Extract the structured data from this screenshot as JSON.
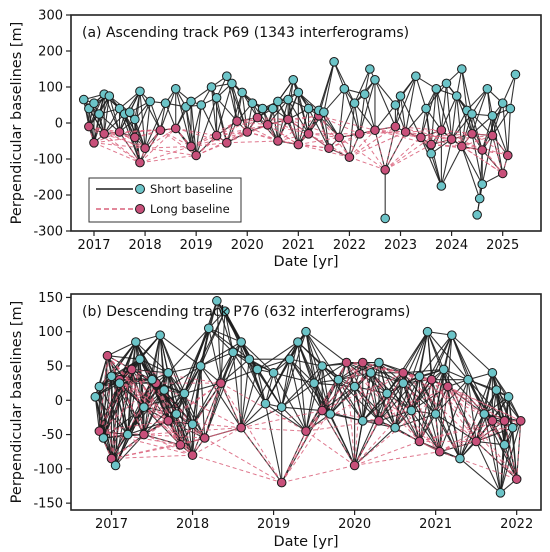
{
  "colors": {
    "short_edge": "#1e1e1e",
    "long_edge": "#d9607a",
    "short_point": "#6cc4c8",
    "long_point": "#c8507a",
    "point_stroke": "#1a1a1a"
  },
  "legend": {
    "short_label": "Short baseline",
    "long_label": "Long baseline",
    "placement": "lower-left of top panel"
  },
  "chart_data": [
    {
      "type": "scatter",
      "title": "(a) Ascending track P69 (1343 interferograms)",
      "xlabel": "Date [yr]",
      "ylabel": "Perpendicular baselines [m]",
      "xlim": [
        2016.55,
        2025.75
      ],
      "ylim": [
        -300,
        300
      ],
      "xticks": [
        2017,
        2018,
        2019,
        2020,
        2021,
        2022,
        2023,
        2024,
        2025
      ],
      "yticks": [
        -300,
        -200,
        -100,
        0,
        100,
        200,
        300
      ],
      "short_points": [
        [
          2016.8,
          65
        ],
        [
          2016.9,
          40
        ],
        [
          2017.0,
          55
        ],
        [
          2017.1,
          25
        ],
        [
          2017.2,
          80
        ],
        [
          2017.3,
          75
        ],
        [
          2017.5,
          40
        ],
        [
          2017.6,
          25
        ],
        [
          2017.7,
          30
        ],
        [
          2017.8,
          10
        ],
        [
          2017.9,
          88
        ],
        [
          2018.1,
          60
        ],
        [
          2018.4,
          55
        ],
        [
          2018.6,
          95
        ],
        [
          2018.8,
          45
        ],
        [
          2018.9,
          60
        ],
        [
          2019.1,
          50
        ],
        [
          2019.3,
          100
        ],
        [
          2019.4,
          70
        ],
        [
          2019.6,
          130
        ],
        [
          2019.7,
          110
        ],
        [
          2019.9,
          85
        ],
        [
          2020.1,
          55
        ],
        [
          2020.3,
          40
        ],
        [
          2020.5,
          40
        ],
        [
          2020.6,
          60
        ],
        [
          2020.8,
          65
        ],
        [
          2020.9,
          120
        ],
        [
          2021.0,
          85
        ],
        [
          2021.2,
          40
        ],
        [
          2021.4,
          35
        ],
        [
          2021.5,
          30
        ],
        [
          2021.7,
          170
        ],
        [
          2021.9,
          95
        ],
        [
          2022.1,
          55
        ],
        [
          2022.3,
          80
        ],
        [
          2022.4,
          150
        ],
        [
          2022.5,
          120
        ],
        [
          2022.7,
          -265
        ],
        [
          2022.9,
          50
        ],
        [
          2023.0,
          75
        ],
        [
          2023.3,
          130
        ],
        [
          2023.5,
          40
        ],
        [
          2023.7,
          95
        ],
        [
          2023.9,
          110
        ],
        [
          2024.1,
          75
        ],
        [
          2024.2,
          150
        ],
        [
          2024.3,
          35
        ],
        [
          2024.4,
          25
        ],
        [
          2024.5,
          -255
        ],
        [
          2024.6,
          -170
        ],
        [
          2024.7,
          95
        ],
        [
          2024.8,
          20
        ],
        [
          2025.0,
          55
        ],
        [
          2025.15,
          40
        ],
        [
          2025.25,
          135
        ],
        [
          2024.55,
          -210
        ],
        [
          2023.6,
          -85
        ],
        [
          2023.8,
          -175
        ]
      ],
      "long_points": [
        [
          2016.9,
          -10
        ],
        [
          2017.0,
          -55
        ],
        [
          2017.2,
          -30
        ],
        [
          2017.5,
          -25
        ],
        [
          2017.8,
          -40
        ],
        [
          2017.9,
          -110
        ],
        [
          2018.0,
          -70
        ],
        [
          2018.3,
          -20
        ],
        [
          2018.6,
          -15
        ],
        [
          2018.9,
          -65
        ],
        [
          2019.0,
          -90
        ],
        [
          2019.4,
          -35
        ],
        [
          2019.6,
          -55
        ],
        [
          2019.8,
          5
        ],
        [
          2020.0,
          -25
        ],
        [
          2020.2,
          15
        ],
        [
          2020.4,
          -5
        ],
        [
          2020.6,
          -50
        ],
        [
          2020.8,
          10
        ],
        [
          2021.0,
          -60
        ],
        [
          2021.2,
          -30
        ],
        [
          2021.4,
          20
        ],
        [
          2021.6,
          -70
        ],
        [
          2021.8,
          -40
        ],
        [
          2022.0,
          -95
        ],
        [
          2022.2,
          -30
        ],
        [
          2022.5,
          -20
        ],
        [
          2022.7,
          -130
        ],
        [
          2022.9,
          -10
        ],
        [
          2023.1,
          -25
        ],
        [
          2023.4,
          -40
        ],
        [
          2023.6,
          -60
        ],
        [
          2023.8,
          -20
        ],
        [
          2024.0,
          -45
        ],
        [
          2024.2,
          -65
        ],
        [
          2024.4,
          -30
        ],
        [
          2024.6,
          -75
        ],
        [
          2024.8,
          -35
        ],
        [
          2025.0,
          -140
        ],
        [
          2025.1,
          -90
        ]
      ]
    },
    {
      "type": "scatter",
      "title": "(b) Descending track P76 (632 interferograms)",
      "xlabel": "Date [yr]",
      "ylabel": "Perpendicular baselines [m]",
      "xlim": [
        2016.5,
        2022.3
      ],
      "ylim": [
        -160,
        155
      ],
      "xticks": [
        2017,
        2018,
        2019,
        2020,
        2021,
        2022
      ],
      "yticks": [
        -150,
        -100,
        -50,
        0,
        50,
        100,
        150
      ],
      "short_points": [
        [
          2016.8,
          5
        ],
        [
          2016.85,
          20
        ],
        [
          2016.9,
          -55
        ],
        [
          2017.0,
          35
        ],
        [
          2017.05,
          -95
        ],
        [
          2017.1,
          25
        ],
        [
          2017.2,
          -50
        ],
        [
          2017.3,
          85
        ],
        [
          2017.35,
          60
        ],
        [
          2017.4,
          -10
        ],
        [
          2017.5,
          30
        ],
        [
          2017.6,
          95
        ],
        [
          2017.65,
          15
        ],
        [
          2017.7,
          40
        ],
        [
          2017.8,
          -20
        ],
        [
          2017.9,
          10
        ],
        [
          2018.0,
          -35
        ],
        [
          2018.1,
          50
        ],
        [
          2018.2,
          105
        ],
        [
          2018.3,
          145
        ],
        [
          2018.4,
          130
        ],
        [
          2018.5,
          70
        ],
        [
          2018.6,
          85
        ],
        [
          2018.7,
          60
        ],
        [
          2018.8,
          45
        ],
        [
          2018.9,
          -5
        ],
        [
          2019.0,
          40
        ],
        [
          2019.1,
          -10
        ],
        [
          2019.2,
          60
        ],
        [
          2019.3,
          85
        ],
        [
          2019.4,
          100
        ],
        [
          2019.5,
          25
        ],
        [
          2019.6,
          50
        ],
        [
          2019.7,
          -20
        ],
        [
          2019.8,
          30
        ],
        [
          2020.0,
          20
        ],
        [
          2020.1,
          -30
        ],
        [
          2020.2,
          40
        ],
        [
          2020.3,
          55
        ],
        [
          2020.4,
          10
        ],
        [
          2020.5,
          -40
        ],
        [
          2020.6,
          25
        ],
        [
          2020.7,
          -15
        ],
        [
          2020.8,
          35
        ],
        [
          2020.9,
          100
        ],
        [
          2021.0,
          -20
        ],
        [
          2021.1,
          45
        ],
        [
          2021.2,
          95
        ],
        [
          2021.3,
          -85
        ],
        [
          2021.4,
          30
        ],
        [
          2021.6,
          -20
        ],
        [
          2021.7,
          40
        ],
        [
          2021.75,
          15
        ],
        [
          2021.8,
          -135
        ],
        [
          2021.85,
          -65
        ],
        [
          2021.9,
          5
        ],
        [
          2021.95,
          -40
        ]
      ],
      "long_points": [
        [
          2016.85,
          -45
        ],
        [
          2016.95,
          65
        ],
        [
          2017.0,
          -85
        ],
        [
          2017.1,
          30
        ],
        [
          2017.25,
          45
        ],
        [
          2017.4,
          -50
        ],
        [
          2017.55,
          25
        ],
        [
          2017.7,
          -30
        ],
        [
          2017.85,
          -65
        ],
        [
          2018.0,
          -80
        ],
        [
          2018.15,
          -55
        ],
        [
          2018.35,
          25
        ],
        [
          2018.6,
          -40
        ],
        [
          2019.1,
          -120
        ],
        [
          2019.4,
          -45
        ],
        [
          2019.6,
          -15
        ],
        [
          2019.9,
          55
        ],
        [
          2020.0,
          -95
        ],
        [
          2020.1,
          55
        ],
        [
          2020.3,
          -30
        ],
        [
          2020.6,
          40
        ],
        [
          2020.8,
          -60
        ],
        [
          2020.95,
          30
        ],
        [
          2021.05,
          -75
        ],
        [
          2021.15,
          20
        ],
        [
          2021.5,
          -60
        ],
        [
          2021.7,
          -30
        ],
        [
          2021.85,
          -30
        ],
        [
          2022.0,
          -115
        ],
        [
          2022.05,
          -30
        ]
      ]
    }
  ]
}
